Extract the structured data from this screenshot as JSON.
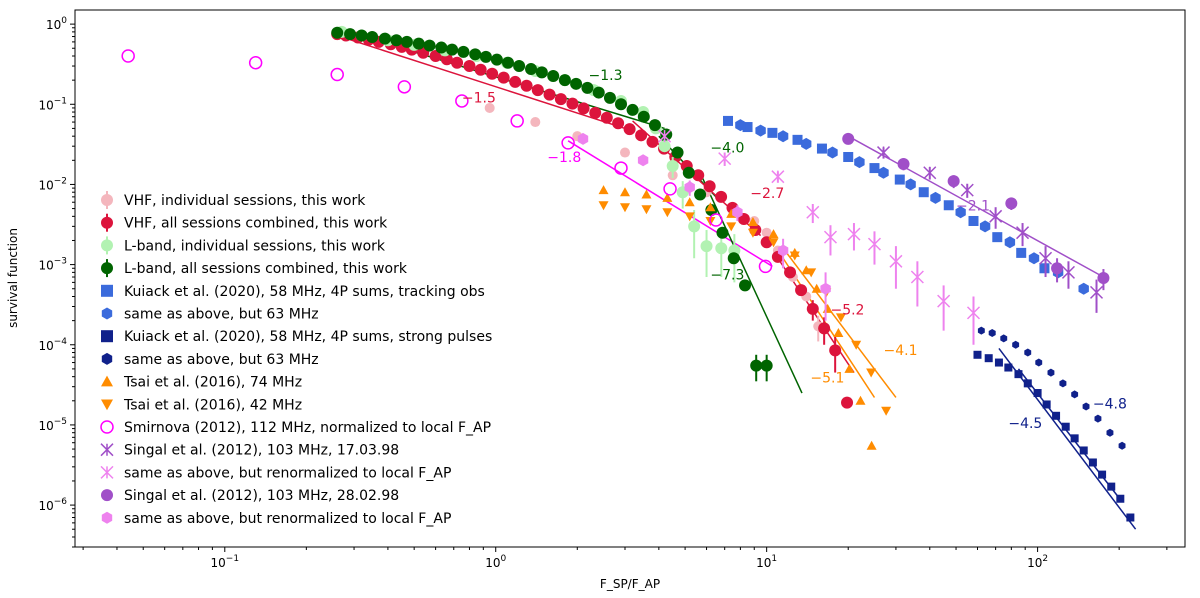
{
  "chart_data": {
    "type": "scatter",
    "title": "",
    "xlabel": "F_SP/F_AP",
    "ylabel": "survival function",
    "xscale": "log",
    "yscale": "log",
    "xlim": [
      0.028,
      350
    ],
    "ylim": [
      3e-07,
      1.5
    ],
    "x_ticks": [
      {
        "value": 0.1,
        "base": "10",
        "exp": "−1"
      },
      {
        "value": 1,
        "base": "10",
        "exp": "0"
      },
      {
        "value": 10,
        "base": "10",
        "exp": "1"
      },
      {
        "value": 100,
        "base": "10",
        "exp": "2"
      }
    ],
    "y_ticks": [
      {
        "value": 1,
        "base": "10",
        "exp": "0"
      },
      {
        "value": 0.1,
        "base": "10",
        "exp": "−1"
      },
      {
        "value": 0.01,
        "base": "10",
        "exp": "−2"
      },
      {
        "value": 0.001,
        "base": "10",
        "exp": "−3"
      },
      {
        "value": 0.0001,
        "base": "10",
        "exp": "−4"
      },
      {
        "value": 1e-05,
        "base": "10",
        "exp": "−5"
      },
      {
        "value": 1e-06,
        "base": "10",
        "exp": "−6"
      }
    ],
    "legend_position": "left",
    "series": [
      {
        "name": "VHF, individual sessions, this work",
        "color": "#f4b6bd",
        "marker": "circle",
        "size": 5,
        "x": [
          0.95,
          1.4,
          2.0,
          3.0,
          4.5,
          6.0,
          7.5,
          9.0,
          10.0,
          11.0,
          12.5,
          14.0,
          15.5
        ],
        "y": [
          0.09,
          0.06,
          0.04,
          0.025,
          0.013,
          0.008,
          0.005,
          0.0035,
          0.0025,
          0.0015,
          0.0007,
          0.0004,
          0.00017
        ],
        "err": [
          0,
          0,
          0,
          0,
          0,
          0,
          0,
          0,
          0,
          0,
          0,
          0,
          6e-05
        ]
      },
      {
        "name": "VHF, all sessions combined, this work",
        "color": "#dc143c",
        "marker": "circle",
        "size": 6,
        "x": [
          0.26,
          0.28,
          0.31,
          0.34,
          0.37,
          0.41,
          0.45,
          0.49,
          0.54,
          0.6,
          0.66,
          0.72,
          0.8,
          0.88,
          0.97,
          1.07,
          1.18,
          1.3,
          1.43,
          1.58,
          1.74,
          1.92,
          2.11,
          2.33,
          2.57,
          2.83,
          3.12,
          3.44,
          3.79,
          4.18,
          4.6,
          5.07,
          5.59,
          6.16,
          6.79,
          7.48,
          8.24,
          9.08,
          10.0,
          11.0,
          12.2,
          13.4,
          14.8,
          16.3,
          17.9,
          19.8
        ],
        "y": [
          0.75,
          0.72,
          0.68,
          0.64,
          0.6,
          0.56,
          0.52,
          0.48,
          0.44,
          0.4,
          0.365,
          0.33,
          0.3,
          0.27,
          0.24,
          0.215,
          0.19,
          0.17,
          0.15,
          0.132,
          0.116,
          0.102,
          0.089,
          0.078,
          0.068,
          0.058,
          0.049,
          0.041,
          0.034,
          0.028,
          0.022,
          0.017,
          0.013,
          0.0095,
          0.007,
          0.0051,
          0.0037,
          0.0027,
          0.0019,
          0.00125,
          0.0008,
          0.00048,
          0.00028,
          0.00016,
          8.5e-05,
          1.9e-05
        ],
        "err": [
          0,
          0,
          0,
          0,
          0,
          0,
          0,
          0,
          0,
          0,
          0,
          0,
          0,
          0,
          0,
          0,
          0,
          0,
          0,
          0,
          0,
          0,
          0,
          0,
          0,
          0,
          0,
          0,
          0,
          0,
          0,
          0,
          0,
          0,
          0,
          0,
          0,
          0,
          0,
          0,
          0,
          0,
          8e-05,
          6e-05,
          4e-05,
          0
        ]
      },
      {
        "name": "L-band, individual sessions, this work",
        "color": "#b2f2b2",
        "marker": "circle",
        "size": 6,
        "x": [
          0.27,
          0.32,
          0.4,
          0.5,
          0.65,
          0.85,
          1.1,
          1.4,
          1.8,
          2.3,
          2.9,
          3.5,
          3.9,
          4.2,
          4.5,
          4.9,
          5.4,
          6.0,
          6.8,
          7.6
        ],
        "y": [
          0.8,
          0.72,
          0.63,
          0.55,
          0.47,
          0.4,
          0.33,
          0.26,
          0.2,
          0.15,
          0.11,
          0.08,
          0.05,
          0.03,
          0.017,
          0.008,
          0.003,
          0.0017,
          0.0016,
          0.0015
        ],
        "err": [
          0,
          0,
          0,
          0,
          0,
          0,
          0,
          0,
          0,
          0,
          0,
          0,
          0,
          0,
          0.005,
          0.003,
          0.0018,
          0.001,
          0.0009,
          0.0009
        ]
      },
      {
        "name": "L-band, all sessions combined, this work",
        "color": "#006400",
        "marker": "circle",
        "size": 6,
        "x": [
          0.26,
          0.29,
          0.32,
          0.35,
          0.39,
          0.43,
          0.47,
          0.52,
          0.57,
          0.63,
          0.69,
          0.76,
          0.84,
          0.92,
          1.01,
          1.11,
          1.22,
          1.35,
          1.48,
          1.63,
          1.8,
          1.98,
          2.18,
          2.4,
          2.64,
          2.9,
          3.2,
          3.52,
          3.87,
          4.26,
          4.69,
          5.16,
          5.68,
          6.25,
          6.87,
          7.56,
          8.32,
          9.15,
          10.0
        ],
        "y": [
          0.78,
          0.75,
          0.72,
          0.69,
          0.66,
          0.63,
          0.6,
          0.57,
          0.54,
          0.51,
          0.48,
          0.45,
          0.42,
          0.39,
          0.36,
          0.33,
          0.3,
          0.275,
          0.25,
          0.225,
          0.2,
          0.18,
          0.16,
          0.14,
          0.12,
          0.1,
          0.085,
          0.07,
          0.055,
          0.042,
          0.025,
          0.014,
          0.0075,
          0.0048,
          0.0025,
          0.0012,
          0.00055,
          5.5e-05,
          5.5e-05
        ],
        "err": [
          0,
          0,
          0,
          0,
          0,
          0,
          0,
          0,
          0,
          0,
          0,
          0,
          0,
          0,
          0,
          0,
          0,
          0,
          0,
          0,
          0,
          0,
          0,
          0,
          0,
          0,
          0,
          0,
          0,
          0,
          0,
          0,
          0,
          0,
          0,
          0,
          0,
          2e-05,
          2e-05
        ]
      },
      {
        "name": "Kuiack et al. (2020), 58 MHz, 4P sums, tracking obs",
        "color": "#3b6bdc",
        "marker": "square",
        "size": 5,
        "x": [
          7.2,
          8.5,
          10.5,
          13,
          16,
          20,
          25,
          31,
          38,
          47,
          58,
          71,
          87,
          106
        ],
        "y": [
          0.062,
          0.052,
          0.044,
          0.036,
          0.028,
          0.022,
          0.016,
          0.0115,
          0.008,
          0.0055,
          0.0035,
          0.0022,
          0.0014,
          0.0009
        ],
        "err": [
          0,
          0,
          0,
          0,
          0,
          0,
          0,
          0,
          0,
          0,
          0,
          0,
          0,
          0
        ]
      },
      {
        "name": "same as above, but 63 MHz",
        "color": "#3b6bdc",
        "marker": "hexagon",
        "size": 6,
        "x": [
          8.0,
          9.5,
          11.5,
          14,
          17.5,
          22,
          27,
          34,
          42,
          52,
          64,
          79,
          97,
          119,
          148
        ],
        "y": [
          0.055,
          0.047,
          0.04,
          0.032,
          0.025,
          0.019,
          0.014,
          0.01,
          0.0068,
          0.0045,
          0.003,
          0.0019,
          0.0012,
          0.0008,
          0.0005
        ],
        "err": [
          0,
          0,
          0,
          0,
          0,
          0,
          0,
          0,
          0,
          0,
          0,
          0,
          0,
          0,
          0
        ]
      },
      {
        "name": "Kuiack et al. (2020), 58 MHz, 4P sums, strong pulses",
        "color": "#10218b",
        "marker": "square",
        "size": 4,
        "x": [
          60,
          66,
          72,
          78,
          85,
          92,
          100,
          108,
          117,
          127,
          137,
          148,
          160,
          173,
          187,
          202,
          220
        ],
        "y": [
          7.5e-05,
          6.8e-05,
          6e-05,
          5.2e-05,
          4.3e-05,
          3.3e-05,
          2.5e-05,
          1.8e-05,
          1.3e-05,
          9.5e-06,
          6.8e-06,
          4.8e-06,
          3.4e-06,
          2.4e-06,
          1.7e-06,
          1.2e-06,
          7e-07
        ],
        "err": [
          0,
          0,
          0,
          0,
          0,
          0,
          0,
          0,
          0,
          0,
          0,
          0,
          0,
          0,
          0,
          0,
          0
        ]
      },
      {
        "name": "same as above, but 63 MHz",
        "color": "#10218b",
        "marker": "hexagon",
        "size": 4,
        "x": [
          62,
          68,
          75,
          83,
          92,
          101,
          112,
          124,
          137,
          151,
          167,
          185,
          205
        ],
        "y": [
          0.00015,
          0.00014,
          0.00012,
          0.0001,
          8e-05,
          6e-05,
          4.5e-05,
          3.3e-05,
          2.4e-05,
          1.7e-05,
          1.2e-05,
          8e-06,
          5.5e-06
        ],
        "err": [
          0,
          0,
          0,
          0,
          0,
          0,
          0,
          0,
          0,
          0,
          0,
          0,
          0
        ]
      },
      {
        "name": "Tsai et al. (2016), 74 MHz",
        "color": "#ff8c00",
        "marker": "triangle-up",
        "size": 5,
        "x": [
          2.5,
          3.0,
          3.6,
          4.3,
          5.2,
          6.2,
          7.4,
          8.9,
          10.6,
          12.7,
          14.0,
          15.3,
          16.8,
          18.4,
          20.2,
          22.2,
          24.4
        ],
        "y": [
          0.0085,
          0.008,
          0.0075,
          0.0068,
          0.006,
          0.0052,
          0.0043,
          0.0034,
          0.0024,
          0.0014,
          0.00085,
          0.0005,
          0.00028,
          0.00014,
          5e-05,
          2e-05,
          5.5e-06
        ],
        "err": [
          0,
          0,
          0,
          0,
          0,
          0,
          0,
          0,
          0,
          0,
          0,
          0,
          0,
          0,
          0,
          0,
          0
        ]
      },
      {
        "name": "Tsai et al. (2016), 42 MHz",
        "color": "#ff8c00",
        "marker": "triangle-down",
        "size": 5,
        "x": [
          2.5,
          3.0,
          3.6,
          4.3,
          5.2,
          6.2,
          7.4,
          8.9,
          10.6,
          12.7,
          14.6,
          16.6,
          18.8,
          21.4,
          24.3,
          27.6
        ],
        "y": [
          0.0055,
          0.0052,
          0.0049,
          0.0045,
          0.004,
          0.0035,
          0.003,
          0.0025,
          0.0019,
          0.0013,
          0.0008,
          0.00045,
          0.00022,
          0.0001,
          4.5e-05,
          1.5e-05
        ],
        "err": [
          0,
          0,
          0,
          0,
          0,
          0,
          0,
          0,
          0,
          0,
          0,
          0,
          0,
          0,
          0,
          0
        ]
      },
      {
        "name": "Smirnova (2012), 112 MHz, normalized to local F_AP",
        "color": "#ff00ff",
        "marker": "open-circle",
        "size": 6,
        "x": [
          0.044,
          0.13,
          0.26,
          0.46,
          0.75,
          1.2,
          1.85,
          2.9,
          4.4,
          6.5,
          9.9
        ],
        "y": [
          0.4,
          0.33,
          0.235,
          0.165,
          0.11,
          0.062,
          0.033,
          0.016,
          0.0088,
          0.0036,
          0.00095
        ],
        "err": [
          0,
          0,
          0,
          0,
          0,
          0,
          0,
          0,
          0,
          0,
          0
        ]
      },
      {
        "name": "Singal et al. (2012), 103 MHz, 17.03.98",
        "color": "#a04fc8",
        "marker": "x-star",
        "size": 6,
        "x": [
          27,
          40,
          55,
          70,
          88,
          107,
          130,
          165
        ],
        "y": [
          0.025,
          0.014,
          0.0085,
          0.004,
          0.0025,
          0.0012,
          0.0008,
          0.00045
        ],
        "err": [
          0.004,
          0.0025,
          0.0017,
          0.0012,
          0.0008,
          0.0005,
          0.0003,
          0.0002
        ]
      },
      {
        "name": "same as above, but renormalized to local F_AP",
        "color": "#ee82ee",
        "marker": "x-star",
        "size": 6,
        "x": [
          4.2,
          7.0,
          11.0,
          14.8,
          17.2,
          21,
          25,
          30,
          36,
          45,
          58
        ],
        "y": [
          0.04,
          0.021,
          0.0125,
          0.0045,
          0.0022,
          0.0024,
          0.0018,
          0.0011,
          0.0007,
          0.00035,
          0.00025
        ],
        "err": [
          0,
          0.004,
          0.002,
          0.0012,
          0.0009,
          0.0009,
          0.0008,
          0.0006,
          0.0004,
          0.0002,
          0.00015
        ]
      },
      {
        "name": "Singal et al. (2012), 103 MHz, 28.02.98",
        "color": "#a04fc8",
        "marker": "circle",
        "size": 6,
        "x": [
          20,
          32,
          49,
          80,
          118,
          175
        ],
        "y": [
          0.037,
          0.018,
          0.011,
          0.0058,
          0.0009,
          0.00068
        ],
        "err": [
          0.005,
          0.003,
          0.002,
          0.001,
          0.0003,
          0.0002
        ]
      },
      {
        "name": "same as above, but renormalized to local F_AP",
        "color": "#ee82ee",
        "marker": "hexagon",
        "size": 6,
        "x": [
          2.1,
          3.5,
          5.2,
          7.8,
          11.5,
          16.5
        ],
        "y": [
          0.037,
          0.02,
          0.0092,
          0.0045,
          0.0015,
          0.0005
        ],
        "err": [
          0,
          0,
          0.002,
          0.001,
          0.0006,
          0.0003
        ]
      }
    ],
    "fit_lines": [
      {
        "label": "−1.3",
        "color": "#006400",
        "x": [
          0.27,
          4.2
        ],
        "y": [
          0.85,
          0.05
        ],
        "label_x": 2.2,
        "label_y": 0.2
      },
      {
        "label": "−1.5",
        "color": "#dc143c",
        "x": [
          0.26,
          3.0
        ],
        "y": [
          0.72,
          0.05
        ],
        "label_x": 0.75,
        "label_y": 0.105
      },
      {
        "label": "−4.0",
        "color": "#006400",
        "x": [
          4.0,
          6.5
        ],
        "y": [
          0.04,
          0.007
        ],
        "label_x": 6.2,
        "label_y": 0.025
      },
      {
        "label": "−2.7",
        "color": "#dc143c",
        "x": [
          3.2,
          9.5
        ],
        "y": [
          0.062,
          0.0023
        ],
        "label_x": 8.7,
        "label_y": 0.0068
      },
      {
        "label": "−1.8",
        "color": "#ff00ff",
        "x": [
          1.85,
          10.5
        ],
        "y": [
          0.035,
          0.00095
        ],
        "label_x": 1.55,
        "label_y": 0.019
      },
      {
        "label": "−7.3",
        "color": "#006400",
        "x": [
          5.8,
          13.5
        ],
        "y": [
          0.012,
          2.5e-05
        ],
        "label_x": 6.2,
        "label_y": 0.00065
      },
      {
        "label": "−5.2",
        "color": "#dc143c",
        "x": [
          11.0,
          21.0
        ],
        "y": [
          0.0012,
          4.5e-05
        ],
        "label_x": 17.2,
        "label_y": 0.00024
      },
      {
        "label": "−5.1",
        "color": "#ff8c00",
        "x": [
          11.5,
          25.0
        ],
        "y": [
          0.0012,
          2.2e-05
        ],
        "label_x": 14.5,
        "label_y": 3.4e-05
      },
      {
        "label": "−4.1",
        "color": "#ff8c00",
        "x": [
          11.5,
          30.0
        ],
        "y": [
          0.0016,
          2.2e-05
        ],
        "label_x": 27,
        "label_y": 7.5e-05
      },
      {
        "label": "−4.8",
        "color": "#10218b",
        "x": [
          85,
          205
        ],
        "y": [
          5e-05,
          1.1e-06
        ],
        "label_x": 160,
        "label_y": 1.6e-05
      },
      {
        "label": "−4.5",
        "color": "#10218b",
        "x": [
          72,
          230
        ],
        "y": [
          9e-05,
          5e-07
        ],
        "label_x": 78,
        "label_y": 9.2e-06
      },
      {
        "label": "−2.1",
        "color": "#a04fc8",
        "x": [
          20,
          175
        ],
        "y": [
          0.04,
          0.0007
        ],
        "label_x": 50,
        "label_y": 0.0047
      }
    ]
  }
}
